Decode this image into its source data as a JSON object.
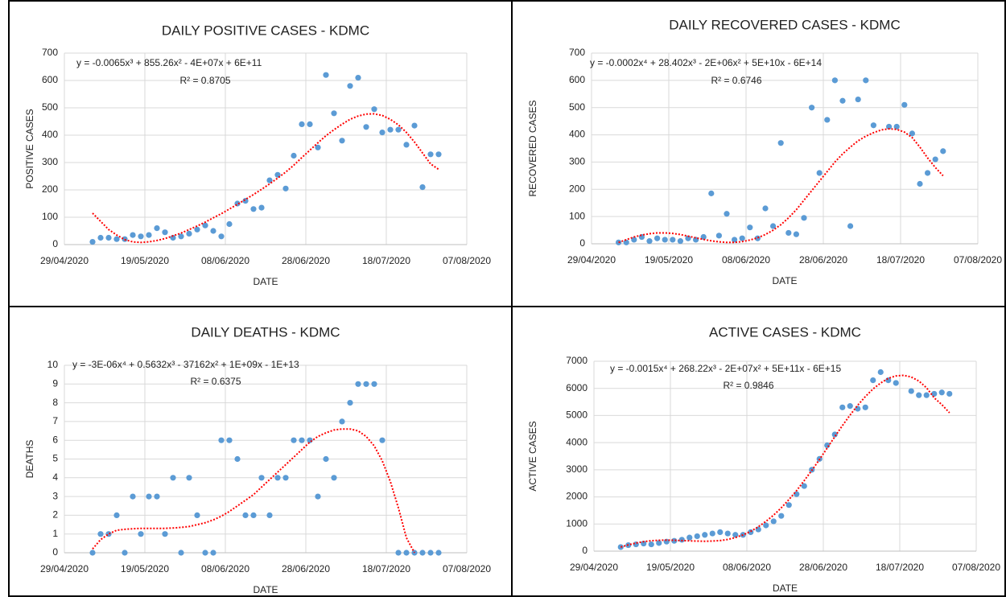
{
  "chart_data": [
    {
      "type": "scatter",
      "title": "DAILY POSITIVE CASES - KDMC",
      "x_label": "DATE",
      "y_label": "POSITIVE CASES",
      "equation": "y = -0.0065x³ + 855.26x² - 4E+07x + 6E+11",
      "r_squared": "R² = 0.8705",
      "xlim": [
        "29/04/2020",
        "07/08/2020"
      ],
      "xticks": [
        "29/04/2020",
        "19/05/2020",
        "08/06/2020",
        "28/06/2020",
        "18/07/2020",
        "07/08/2020"
      ],
      "ylim": [
        0,
        700
      ],
      "yticks": [
        0,
        100,
        200,
        300,
        400,
        500,
        600,
        700
      ],
      "grid": true,
      "x": [
        "06/05/2020",
        "08/05/2020",
        "10/05/2020",
        "12/05/2020",
        "14/05/2020",
        "16/05/2020",
        "18/05/2020",
        "20/05/2020",
        "22/05/2020",
        "24/05/2020",
        "26/05/2020",
        "28/05/2020",
        "30/05/2020",
        "01/06/2020",
        "03/06/2020",
        "05/06/2020",
        "07/06/2020",
        "09/06/2020",
        "11/06/2020",
        "13/06/2020",
        "15/06/2020",
        "17/06/2020",
        "19/06/2020",
        "21/06/2020",
        "23/06/2020",
        "25/06/2020",
        "27/06/2020",
        "29/06/2020",
        "01/07/2020",
        "03/07/2020",
        "05/07/2020",
        "07/07/2020",
        "09/07/2020",
        "11/07/2020",
        "13/07/2020",
        "15/07/2020",
        "17/07/2020",
        "19/07/2020",
        "21/07/2020",
        "23/07/2020",
        "25/07/2020",
        "27/07/2020",
        "29/07/2020",
        "31/07/2020"
      ],
      "series": [
        {
          "color": "#5b9bd5",
          "values": [
            10,
            25,
            25,
            20,
            20,
            35,
            30,
            35,
            60,
            45,
            25,
            30,
            40,
            55,
            70,
            50,
            30,
            75,
            150,
            160,
            130,
            135,
            235,
            255,
            205,
            325,
            440,
            440,
            355,
            620,
            480,
            380,
            580,
            610,
            430,
            495,
            410,
            420,
            420,
            365,
            435,
            210,
            330,
            330
          ]
        }
      ],
      "trendline": {
        "color": "#ff0000",
        "values": [
          115,
          85,
          55,
          35,
          18,
          10,
          8,
          10,
          15,
          22,
          32,
          42,
          55,
          68,
          82,
          98,
          113,
          130,
          147,
          165,
          183,
          202,
          222,
          243,
          265,
          290,
          318,
          345,
          372,
          398,
          420,
          440,
          458,
          470,
          477,
          478,
          472,
          458,
          438,
          410,
          375,
          335,
          295,
          275
        ]
      }
    },
    {
      "type": "scatter",
      "title": "DAILY RECOVERED CASES - KDMC",
      "x_label": "DATE",
      "y_label": "RECOVERED CASES",
      "equation": "y = -0.0002x⁴ + 28.402x³ - 2E+06x² + 5E+10x - 6E+14",
      "r_squared": "R² = 0.6746",
      "xlim": [
        "29/04/2020",
        "07/08/2020"
      ],
      "xticks": [
        "29/04/2020",
        "19/05/2020",
        "08/06/2020",
        "28/06/2020",
        "18/07/2020",
        "07/08/2020"
      ],
      "ylim": [
        0,
        700
      ],
      "yticks": [
        0,
        100,
        200,
        300,
        400,
        500,
        600,
        700
      ],
      "grid": true,
      "x": [
        "06/05/2020",
        "08/05/2020",
        "10/05/2020",
        "12/05/2020",
        "14/05/2020",
        "16/05/2020",
        "18/05/2020",
        "20/05/2020",
        "22/05/2020",
        "24/05/2020",
        "26/05/2020",
        "28/05/2020",
        "30/05/2020",
        "01/06/2020",
        "03/06/2020",
        "05/06/2020",
        "07/06/2020",
        "09/06/2020",
        "11/06/2020",
        "13/06/2020",
        "15/06/2020",
        "17/06/2020",
        "19/06/2020",
        "21/06/2020",
        "23/06/2020",
        "25/06/2020",
        "27/06/2020",
        "29/06/2020",
        "01/07/2020",
        "03/07/2020",
        "05/07/2020",
        "07/07/2020",
        "09/07/2020",
        "11/07/2020",
        "13/07/2020",
        "15/07/2020",
        "17/07/2020",
        "19/07/2020",
        "21/07/2020",
        "23/07/2020",
        "25/07/2020",
        "27/07/2020",
        "29/07/2020",
        "31/07/2020"
      ],
      "series": [
        {
          "color": "#5b9bd5",
          "values": [
            5,
            5,
            15,
            25,
            10,
            20,
            15,
            15,
            10,
            20,
            15,
            25,
            185,
            30,
            110,
            15,
            20,
            60,
            20,
            130,
            65,
            370,
            40,
            35,
            95,
            500,
            260,
            455,
            600,
            525,
            65,
            530,
            600,
            435,
            null,
            430,
            430,
            510,
            405,
            220,
            260,
            310,
            340,
            null
          ]
        }
      ],
      "trendline": {
        "color": "#ff0000",
        "values": [
          5,
          15,
          25,
          32,
          37,
          40,
          40,
          38,
          34,
          28,
          22,
          16,
          11,
          7,
          5,
          5,
          8,
          14,
          22,
          34,
          50,
          70,
          95,
          125,
          160,
          195,
          230,
          265,
          300,
          330,
          355,
          378,
          395,
          408,
          418,
          422,
          420,
          410,
          390,
          355,
          315,
          280,
          250,
          null
        ]
      }
    },
    {
      "type": "scatter",
      "title": "DAILY DEATHS - KDMC",
      "x_label": "DATE",
      "y_label": "DEATHS",
      "equation": "y = -3E-06x⁴ + 0.5632x³ - 37162x² + 1E+09x - 1E+13",
      "r_squared": "R² = 0.6375",
      "xlim": [
        "29/04/2020",
        "07/08/2020"
      ],
      "xticks": [
        "29/04/2020",
        "19/05/2020",
        "08/06/2020",
        "28/06/2020",
        "18/07/2020",
        "07/08/2020"
      ],
      "ylim": [
        0,
        10
      ],
      "yticks": [
        0,
        1,
        2,
        3,
        4,
        5,
        6,
        7,
        8,
        9,
        10
      ],
      "grid": true,
      "x": [
        "06/05/2020",
        "08/05/2020",
        "10/05/2020",
        "12/05/2020",
        "14/05/2020",
        "16/05/2020",
        "18/05/2020",
        "20/05/2020",
        "22/05/2020",
        "24/05/2020",
        "26/05/2020",
        "28/05/2020",
        "30/05/2020",
        "01/06/2020",
        "03/06/2020",
        "05/06/2020",
        "07/06/2020",
        "09/06/2020",
        "11/06/2020",
        "13/06/2020",
        "15/06/2020",
        "17/06/2020",
        "19/06/2020",
        "21/06/2020",
        "23/06/2020",
        "25/06/2020",
        "27/06/2020",
        "29/06/2020",
        "01/07/2020",
        "03/07/2020",
        "05/07/2020",
        "07/07/2020",
        "09/07/2020",
        "11/07/2020",
        "13/07/2020",
        "15/07/2020",
        "17/07/2020",
        "19/07/2020",
        "21/07/2020",
        "23/07/2020",
        "25/07/2020",
        "27/07/2020",
        "29/07/2020",
        "31/07/2020"
      ],
      "series": [
        {
          "color": "#5b9bd5",
          "values": [
            0,
            1,
            1,
            2,
            0,
            3,
            1,
            3,
            3,
            1,
            4,
            0,
            4,
            2,
            0,
            0,
            6,
            6,
            5,
            2,
            2,
            4,
            2,
            4,
            4,
            6,
            6,
            6,
            3,
            5,
            4,
            7,
            8,
            9,
            9,
            9,
            6,
            null,
            0,
            0,
            0,
            0,
            0,
            0
          ]
        }
      ],
      "trendline": {
        "color": "#ff0000",
        "values": [
          0.2,
          0.7,
          1.0,
          1.2,
          1.25,
          1.28,
          1.3,
          1.3,
          1.3,
          1.3,
          1.32,
          1.35,
          1.4,
          1.5,
          1.6,
          1.75,
          1.95,
          2.2,
          2.5,
          2.8,
          3.1,
          3.5,
          3.9,
          4.3,
          4.7,
          5.1,
          5.5,
          5.9,
          6.2,
          6.4,
          6.55,
          6.6,
          6.6,
          6.5,
          6.2,
          5.7,
          4.9,
          3.8,
          2.4,
          0.8,
          0,
          null,
          null,
          null
        ]
      }
    },
    {
      "type": "scatter",
      "title": "ACTIVE CASES - KDMC",
      "x_label": "DATE",
      "y_label": "ACTIVE CASES",
      "equation": "y = -0.0015x⁴ + 268.22x³ - 2E+07x² + 5E+11x - 6E+15",
      "r_squared": "R² = 0.9846",
      "xlim": [
        "29/04/2020",
        "07/08/2020"
      ],
      "xticks": [
        "29/04/2020",
        "19/05/2020",
        "08/06/2020",
        "28/06/2020",
        "18/07/2020",
        "07/08/2020"
      ],
      "ylim": [
        0,
        7000
      ],
      "yticks": [
        0,
        1000,
        2000,
        3000,
        4000,
        5000,
        6000,
        7000
      ],
      "grid": true,
      "x": [
        "06/05/2020",
        "08/05/2020",
        "10/05/2020",
        "12/05/2020",
        "14/05/2020",
        "16/05/2020",
        "18/05/2020",
        "20/05/2020",
        "22/05/2020",
        "24/05/2020",
        "26/05/2020",
        "28/05/2020",
        "30/05/2020",
        "01/06/2020",
        "03/06/2020",
        "05/06/2020",
        "07/06/2020",
        "09/06/2020",
        "11/06/2020",
        "13/06/2020",
        "15/06/2020",
        "17/06/2020",
        "19/06/2020",
        "21/06/2020",
        "23/06/2020",
        "25/06/2020",
        "27/06/2020",
        "29/06/2020",
        "01/07/2020",
        "03/07/2020",
        "05/07/2020",
        "07/07/2020",
        "09/07/2020",
        "11/07/2020",
        "13/07/2020",
        "15/07/2020",
        "17/07/2020",
        "19/07/2020",
        "21/07/2020",
        "23/07/2020",
        "25/07/2020",
        "27/07/2020",
        "29/07/2020",
        "31/07/2020"
      ],
      "series": [
        {
          "color": "#5b9bd5",
          "values": [
            150,
            220,
            250,
            280,
            250,
            300,
            350,
            380,
            420,
            500,
            550,
            600,
            650,
            700,
            650,
            600,
            600,
            700,
            800,
            950,
            1100,
            1300,
            1700,
            2100,
            2400,
            3000,
            3400,
            3900,
            4300,
            5300,
            5350,
            5250,
            5300,
            6300,
            6600,
            6300,
            6200,
            null,
            5900,
            5750,
            5750,
            5800,
            5850,
            5800
          ]
        }
      ],
      "trendline": {
        "color": "#ff0000",
        "values": [
          150,
          230,
          300,
          350,
          385,
          400,
          405,
          400,
          390,
          380,
          370,
          365,
          370,
          390,
          430,
          500,
          600,
          730,
          900,
          1100,
          1330,
          1600,
          1900,
          2230,
          2600,
          2980,
          3380,
          3800,
          4220,
          4630,
          5020,
          5380,
          5700,
          5980,
          6200,
          6370,
          6460,
          6480,
          6420,
          6270,
          6020,
          5650,
          5400,
          5100
        ]
      }
    }
  ]
}
